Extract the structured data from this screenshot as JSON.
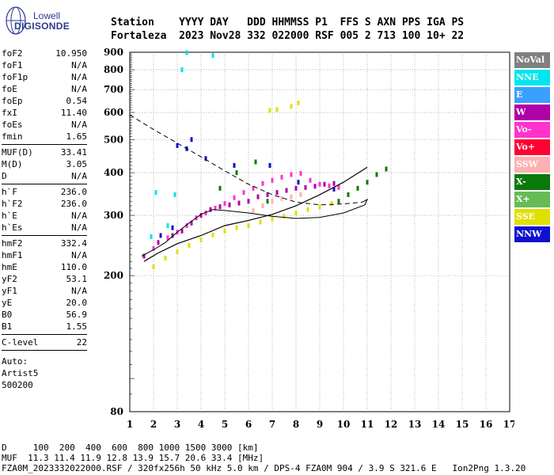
{
  "logo": {
    "line1": "Lowell",
    "line2": "DIGISONDE"
  },
  "header": {
    "line1": "Station    YYYY DAY   DDD HHMMSS P1  FFS S AXN PPS IGA PS",
    "line2": "Fortaleza  2023 Nov28 332 022000 RSF 005 2 713 100 10+ 22"
  },
  "params": {
    "group1": [
      {
        "label": "foF2",
        "value": "10.950"
      },
      {
        "label": "foF1",
        "value": "N/A"
      },
      {
        "label": "foF1p",
        "value": "N/A"
      },
      {
        "label": "foE",
        "value": "N/A"
      },
      {
        "label": "foEp",
        "value": "0.54"
      },
      {
        "label": "fxI",
        "value": "11.40"
      },
      {
        "label": "foEs",
        "value": "N/A"
      },
      {
        "label": "fmin",
        "value": "1.65"
      }
    ],
    "group2": [
      {
        "label": "MUF(D)",
        "value": "33.41"
      },
      {
        "label": "M(D)",
        "value": "3.05"
      },
      {
        "label": "D",
        "value": "N/A"
      }
    ],
    "group3": [
      {
        "label": "h`F",
        "value": "236.0"
      },
      {
        "label": "h`F2",
        "value": "236.0"
      },
      {
        "label": "h`E",
        "value": "N/A"
      },
      {
        "label": "h`Es",
        "value": "N/A"
      }
    ],
    "group4": [
      {
        "label": "hmF2",
        "value": "332.4"
      },
      {
        "label": "hmF1",
        "value": "N/A"
      },
      {
        "label": "hmE",
        "value": "110.0"
      },
      {
        "label": "yF2",
        "value": "53.1"
      },
      {
        "label": "yF1",
        "value": "N/A"
      },
      {
        "label": "yE",
        "value": "20.0"
      },
      {
        "label": "B0",
        "value": "56.9"
      },
      {
        "label": "B1",
        "value": "1.55"
      }
    ],
    "group5": [
      {
        "label": "C-level",
        "value": "22"
      }
    ],
    "auto": [
      "Auto:",
      "Artist5",
      "500200"
    ]
  },
  "legend": [
    {
      "label": "NoVal",
      "color": "#808080"
    },
    {
      "label": "NNE",
      "color": "#00e5ee"
    },
    {
      "label": "E",
      "color": "#3aa0ff"
    },
    {
      "label": "W",
      "color": "#b000a8"
    },
    {
      "label": "Vo-",
      "color": "#ff33cc"
    },
    {
      "label": "Vo+",
      "color": "#ff0033"
    },
    {
      "label": "SSW",
      "color": "#ffb0b0"
    },
    {
      "label": "X-",
      "color": "#0a7a0a"
    },
    {
      "label": "X+",
      "color": "#66bb55"
    },
    {
      "label": "SSE",
      "color": "#e0e000"
    },
    {
      "label": "NNW",
      "color": "#1010cc"
    }
  ],
  "footer": {
    "line1": "D     100  200  400  600  800 1000 1500 3000 [km]",
    "line2": "MUF  11.3 11.4 11.9 12.8 13.9 15.7 20.6 33.4 [MHz]",
    "line3": "FZA0M_2023332022000.RSF / 320fx256h 50 kHz 5.0 km / DPS-4 FZA0M 904 / 3.9 S 321.6 E   Ion2Png 1.3.20"
  },
  "chart_data": {
    "type": "scatter",
    "xlim": [
      1,
      17
    ],
    "ylim": [
      80,
      900
    ],
    "x_ticks": [
      1,
      2,
      3,
      4,
      5,
      6,
      7,
      8,
      9,
      10,
      11,
      12,
      13,
      14,
      15,
      16,
      17
    ],
    "y_ticks": [
      80,
      200,
      300,
      400,
      500,
      600,
      700,
      800,
      900
    ],
    "y_scale": "log",
    "grid": true,
    "traces": [
      {
        "name": "W",
        "color": "#b000a8",
        "points": [
          [
            1.6,
            228
          ],
          [
            2.2,
            250
          ],
          [
            2.8,
            262
          ],
          [
            3.2,
            270
          ],
          [
            3.6,
            285
          ],
          [
            4.0,
            300
          ],
          [
            4.4,
            312
          ],
          [
            4.8,
            318
          ],
          [
            5.2,
            322
          ],
          [
            5.6,
            326
          ],
          [
            6.0,
            330
          ],
          [
            6.4,
            340
          ],
          [
            6.8,
            345
          ],
          [
            7.2,
            350
          ],
          [
            7.6,
            355
          ],
          [
            8.0,
            360
          ],
          [
            8.4,
            362
          ],
          [
            8.8,
            365
          ],
          [
            9.2,
            370
          ],
          [
            9.6,
            372
          ]
        ]
      },
      {
        "name": "Vo-",
        "color": "#ff33cc",
        "points": [
          [
            2.0,
            240
          ],
          [
            2.6,
            258
          ],
          [
            3.0,
            268
          ],
          [
            3.4,
            280
          ],
          [
            3.8,
            295
          ],
          [
            4.2,
            305
          ],
          [
            4.6,
            315
          ],
          [
            5.0,
            325
          ],
          [
            5.4,
            338
          ],
          [
            5.8,
            350
          ],
          [
            6.2,
            360
          ],
          [
            6.6,
            372
          ],
          [
            7.0,
            380
          ],
          [
            7.4,
            388
          ],
          [
            7.8,
            395
          ],
          [
            8.2,
            398
          ],
          [
            8.6,
            380
          ],
          [
            9.0,
            370
          ],
          [
            9.4,
            366
          ],
          [
            9.8,
            362
          ]
        ]
      },
      {
        "name": "SSE",
        "color": "#e0e000",
        "points": [
          [
            2.0,
            212
          ],
          [
            2.5,
            225
          ],
          [
            3.0,
            235
          ],
          [
            3.5,
            245
          ],
          [
            4.0,
            255
          ],
          [
            4.5,
            263
          ],
          [
            5.0,
            270
          ],
          [
            5.5,
            276
          ],
          [
            6.0,
            280
          ],
          [
            6.5,
            287
          ],
          [
            7.0,
            293
          ],
          [
            7.5,
            298
          ],
          [
            8.0,
            305
          ],
          [
            8.5,
            312
          ],
          [
            9.0,
            318
          ],
          [
            9.5,
            325
          ],
          [
            6.9,
            608
          ],
          [
            7.2,
            612
          ],
          [
            7.8,
            625
          ],
          [
            8.1,
            640
          ]
        ]
      },
      {
        "name": "X-",
        "color": "#0a7a0a",
        "points": [
          [
            9.8,
            330
          ],
          [
            10.2,
            345
          ],
          [
            10.6,
            360
          ],
          [
            11.0,
            375
          ],
          [
            11.4,
            395
          ],
          [
            11.8,
            410
          ],
          [
            5.5,
            400
          ],
          [
            6.3,
            430
          ],
          [
            4.8,
            360
          ],
          [
            6.8,
            330
          ]
        ]
      },
      {
        "name": "NNW",
        "color": "#1010cc",
        "points": [
          [
            3.0,
            480
          ],
          [
            3.4,
            470
          ],
          [
            3.6,
            500
          ],
          [
            4.2,
            440
          ],
          [
            5.4,
            420
          ],
          [
            6.9,
            420
          ],
          [
            8.1,
            375
          ],
          [
            9.6,
            358
          ],
          [
            2.3,
            262
          ],
          [
            2.8,
            276
          ]
        ]
      },
      {
        "name": "NNE",
        "color": "#00e5ee",
        "points": [
          [
            1.9,
            260
          ],
          [
            2.1,
            350
          ],
          [
            2.9,
            345
          ],
          [
            2.6,
            280
          ],
          [
            3.2,
            800
          ],
          [
            3.4,
            898
          ],
          [
            4.5,
            880
          ]
        ]
      },
      {
        "name": "SSW",
        "color": "#ffb0b0",
        "points": [
          [
            6.2,
            310
          ],
          [
            6.6,
            320
          ],
          [
            7.0,
            330
          ],
          [
            7.4,
            336
          ],
          [
            7.8,
            340
          ],
          [
            8.2,
            345
          ]
        ]
      }
    ],
    "profile_curve": [
      [
        1.0,
        590
      ],
      [
        2.0,
        535
      ],
      [
        3.0,
        488
      ],
      [
        4.0,
        445
      ],
      [
        5.0,
        405
      ],
      [
        6.0,
        370
      ],
      [
        7.0,
        345
      ],
      [
        8.0,
        328
      ],
      [
        9.0,
        322
      ],
      [
        10.0,
        324
      ],
      [
        10.8,
        328
      ],
      [
        11.0,
        334
      ],
      [
        10.9,
        322
      ],
      [
        10.0,
        305
      ],
      [
        9.0,
        296
      ],
      [
        8.0,
        294
      ],
      [
        7.0,
        298
      ],
      [
        6.0,
        305
      ],
      [
        5.0,
        310
      ],
      [
        4.5,
        312
      ],
      [
        4.0,
        302
      ],
      [
        3.5,
        285
      ],
      [
        3.0,
        268
      ],
      [
        2.5,
        250
      ],
      [
        2.0,
        238
      ],
      [
        1.5,
        228
      ]
    ],
    "trace_line": [
      [
        1.6,
        220
      ],
      [
        2.2,
        233
      ],
      [
        3.0,
        248
      ],
      [
        4.0,
        262
      ],
      [
        5.0,
        280
      ],
      [
        6.0,
        290
      ],
      [
        7.0,
        302
      ],
      [
        8.0,
        320
      ],
      [
        9.0,
        345
      ],
      [
        10.0,
        375
      ],
      [
        11.0,
        415
      ]
    ]
  }
}
